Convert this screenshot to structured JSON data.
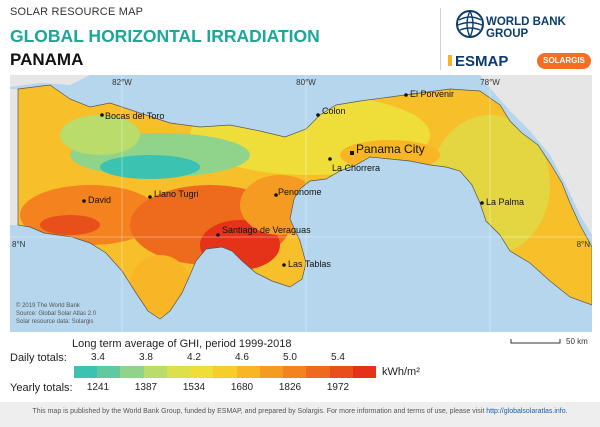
{
  "header": {
    "subtitle": "SOLAR RESOURCE MAP",
    "title": "GLOBAL HORIZONTAL IRRADIATION",
    "country": "PANAMA"
  },
  "logos": {
    "world_bank": "WORLD BANK GROUP",
    "esmap": "ESMAP",
    "solargis": "SOLARGIS"
  },
  "map": {
    "graticule": [
      "82°W",
      "80°W",
      "78°W",
      "8°N",
      "8°N"
    ],
    "places": [
      {
        "name": "Bocas del Toro",
        "kind": "town"
      },
      {
        "name": "Colon",
        "kind": "town"
      },
      {
        "name": "El Porvenir",
        "kind": "town"
      },
      {
        "name": "Panama City",
        "kind": "capital"
      },
      {
        "name": "La Chorrera",
        "kind": "town"
      },
      {
        "name": "David",
        "kind": "town"
      },
      {
        "name": "Llano Tugri",
        "kind": "town"
      },
      {
        "name": "Penonome",
        "kind": "town"
      },
      {
        "name": "Santiago de Veraguas",
        "kind": "town"
      },
      {
        "name": "Las Tablas",
        "kind": "town"
      },
      {
        "name": "La Palma",
        "kind": "town"
      }
    ],
    "credits": [
      "© 2019 The World Bank",
      "Source: Global Solar Atlas 2.0",
      "Solar resource data: Solargis"
    ],
    "scale_label": "50 km",
    "colors": {
      "sea": "#b5d6ec",
      "neighbor": "#e6e6e6",
      "low": "#3cc2b0",
      "high": "#e43319"
    }
  },
  "legend": {
    "title": "Long term average of GHI, period 1999-2018",
    "daily_label": "Daily totals:",
    "yearly_label": "Yearly totals:",
    "daily_ticks": [
      "3.4",
      "3.8",
      "4.2",
      "4.6",
      "5.0",
      "5.4"
    ],
    "yearly_ticks": [
      "1241",
      "1387",
      "1534",
      "1680",
      "1826",
      "1972"
    ],
    "unit": "kWh/m²",
    "colors": [
      "#3cc2b0",
      "#5fcaa0",
      "#8fd48a",
      "#b9dc6a",
      "#dbe04c",
      "#efde3a",
      "#f7cd2c",
      "#f8b526",
      "#f69b22",
      "#f3821f",
      "#ee6a1d",
      "#e8501b",
      "#e43319"
    ]
  },
  "footer": {
    "text": "This map is published by the World Bank Group, funded by ESMAP, and prepared by Solargis. For more information and terms of use, please visit",
    "link": "http://globalsolaratlas.info."
  }
}
